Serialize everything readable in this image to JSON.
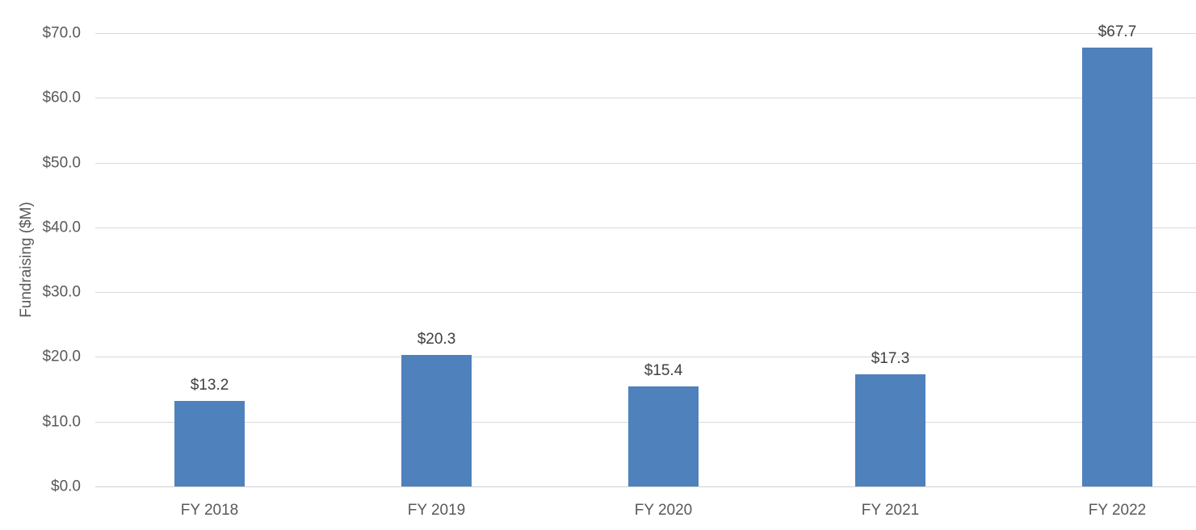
{
  "chart_data": {
    "type": "bar",
    "categories": [
      "FY 2018",
      "FY 2019",
      "FY 2020",
      "FY 2021",
      "FY 2022"
    ],
    "values": [
      13.2,
      20.3,
      15.4,
      17.3,
      67.7
    ],
    "data_labels": [
      "$13.2",
      "$20.3",
      "$15.4",
      "$17.3",
      "$67.7"
    ],
    "title": "",
    "xlabel": "",
    "ylabel": "Fundraising ($M)",
    "ylim": [
      0,
      75
    ],
    "y_major_unit": 10,
    "y_tick_labels": [
      "$0.0",
      "$10.0",
      "$20.0",
      "$30.0",
      "$40.0",
      "$50.0",
      "$60.0",
      "$70.0"
    ],
    "grid": "horizontal-only",
    "legend": "none",
    "bar_color": "#4F81BD",
    "gridline_color": "#D9D9D9",
    "axis_text_color": "#595959",
    "data_label_color": "#404040",
    "background_color": "#FFFFFF"
  }
}
